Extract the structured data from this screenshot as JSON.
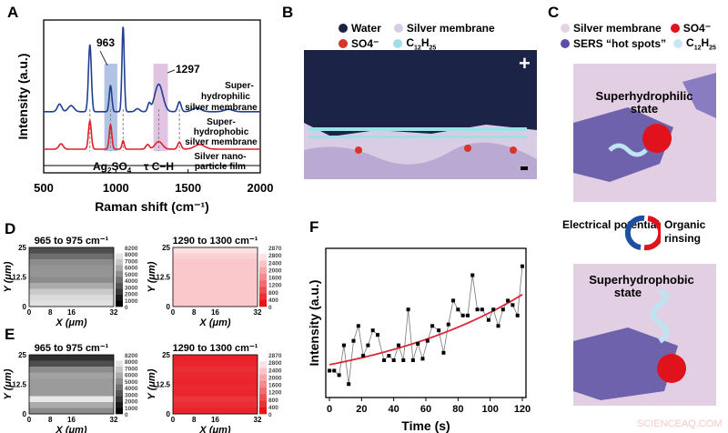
{
  "panels": {
    "a": "A",
    "b": "B",
    "c": "C",
    "d": "D",
    "e": "E",
    "f": "F"
  },
  "panel_b": {
    "legend": [
      {
        "label": "Water",
        "color": "#1b2347"
      },
      {
        "label": "Silver membrane",
        "color": "#d9cde6"
      },
      {
        "label": "SO4⁻",
        "color": "#d8342a"
      },
      {
        "label": "C12H25",
        "color": "#9fe0e6"
      }
    ],
    "plus": "+"
  },
  "panel_c": {
    "legend": [
      {
        "label": "Silver  membrane",
        "color": "#e3d3e3"
      },
      {
        "label": "SO4⁻",
        "color": "#e0121c"
      },
      {
        "label": "SERS “hot spots”",
        "color": "#5a4fa8"
      },
      {
        "label": "C12H25",
        "color": "#c9e6f2"
      }
    ],
    "top_state": "Superhydrophilic state",
    "bottom_state": "Superhydrophobic state",
    "left_label": "Electrical potential",
    "right_label": "Organic rinsing"
  },
  "watermark": "SCIENCEAQ.COM",
  "chart_data": [
    {
      "type": "line",
      "panel": "A",
      "xlabel": "Raman shift (cm⁻¹)",
      "ylabel": "Intensity (a.u.)",
      "xlim": [
        500,
        2000
      ],
      "xticks": [
        500,
        1000,
        1500,
        2000
      ],
      "annotations": {
        "peak1": "963",
        "peak2": "1297",
        "band1": "Ag2SO4",
        "band2": "τ C−H"
      },
      "bands": [
        {
          "range": [
            920,
            1010
          ],
          "color": "#9fb4dc"
        },
        {
          "range": [
            1260,
            1360
          ],
          "color": "#d9b5d9"
        }
      ],
      "dashed_markers": [
        820,
        963,
        1050,
        1297,
        1440
      ],
      "series": [
        {
          "name": "Super-hydrophilic silver membrane",
          "color": "#1f3f93",
          "baseline": 4.0,
          "peaks": [
            [
              610,
              0.5,
              15
            ],
            [
              690,
              0.4,
              20
            ],
            [
              820,
              4.4,
              10
            ],
            [
              963,
              1.7,
              9
            ],
            [
              1050,
              5.6,
              8
            ],
            [
              1150,
              0.2,
              15
            ],
            [
              1230,
              0.5,
              10
            ],
            [
              1297,
              1.8,
              28
            ],
            [
              1440,
              0.65,
              12
            ],
            [
              1560,
              0.25,
              30
            ],
            [
              1780,
              0.15,
              30
            ]
          ]
        },
        {
          "name": "Super-hydrophobic silver membrane",
          "color": "#e0202a",
          "baseline": 1.55,
          "peaks": [
            [
              620,
              0.35,
              15
            ],
            [
              820,
              1.85,
              10
            ],
            [
              963,
              1.6,
              9
            ],
            [
              1050,
              0.55,
              8
            ],
            [
              1220,
              0.3,
              12
            ],
            [
              1297,
              0.5,
              25
            ],
            [
              1440,
              0.45,
              12
            ],
            [
              1580,
              0.3,
              35
            ]
          ]
        }
      ],
      "extra_label": "Silver nano-particle film"
    },
    {
      "type": "heatmap",
      "panel": "D",
      "title": "965 to 975 cm⁻¹",
      "xlabel": "X (μm)",
      "ylabel": "Y (μm)",
      "xticks": [
        "0",
        "8",
        "16",
        "32"
      ],
      "yticks": [
        "0",
        "12.5",
        "25"
      ],
      "colorbar": [
        "8200",
        "8000",
        "7000",
        "6000",
        "5000",
        "4000",
        "3000",
        "2000",
        "1000",
        "0"
      ],
      "scale": "gray",
      "max": 8200,
      "rows": [
        2500,
        3500,
        4500,
        4800,
        4800,
        4500,
        5500,
        6500,
        7000,
        7200
      ]
    },
    {
      "type": "heatmap",
      "panel": "D",
      "title": "1290 to 1300 cm⁻¹",
      "xlabel": "X (μm)",
      "ylabel": "Y (μm)",
      "xticks": [
        "0",
        "8",
        "16",
        "32"
      ],
      "yticks": [
        "0",
        "12.5",
        "25"
      ],
      "colorbar": [
        "2870",
        "2800",
        "2400",
        "2000",
        "1600",
        "1200",
        "800",
        "400",
        "0"
      ],
      "scale": "red",
      "max": 2870,
      "rows": [
        2500,
        2300,
        2200,
        2200,
        2200,
        2200,
        2200,
        2200,
        2200,
        2200
      ]
    },
    {
      "type": "heatmap",
      "panel": "E",
      "title": "965 to 975 cm⁻¹",
      "xlabel": "X (μm)",
      "ylabel": "Y (μm)",
      "xticks": [
        "0",
        "8",
        "16",
        "32"
      ],
      "yticks": [
        "0",
        "12.5",
        "25"
      ],
      "colorbar": [
        "8200",
        "8000",
        "7000",
        "6000",
        "5000",
        "4000",
        "3000",
        "2000",
        "1000",
        "0"
      ],
      "scale": "gray",
      "max": 8200,
      "rows": [
        1500,
        2500,
        4500,
        5200,
        5000,
        5000,
        5000,
        7500,
        5500,
        4500
      ]
    },
    {
      "type": "heatmap",
      "panel": "E",
      "title": "1290 to 1300 cm⁻¹",
      "xlabel": "X (μm)",
      "ylabel": "Y (μm)",
      "xticks": [
        "0",
        "8",
        "16",
        "32"
      ],
      "yticks": [
        "0",
        "12.5",
        "25"
      ],
      "colorbar": [
        "2870",
        "2800",
        "2400",
        "2000",
        "1600",
        "1200",
        "800",
        "400",
        "0"
      ],
      "scale": "red",
      "max": 2870,
      "rows": [
        150,
        200,
        300,
        250,
        200,
        250,
        200,
        400,
        300,
        200
      ]
    },
    {
      "type": "scatter",
      "panel": "F",
      "xlabel": "Time (s)",
      "ylabel": "Intensity (a.u.)",
      "xlim": [
        0,
        120
      ],
      "ylim": [
        0,
        1
      ],
      "xticks": [
        0,
        20,
        40,
        60,
        80,
        100,
        120
      ],
      "x": [
        0,
        3,
        6,
        9,
        12,
        15,
        18,
        21,
        24,
        27,
        30,
        34,
        37,
        40,
        43,
        46,
        49,
        52,
        55,
        58,
        61,
        64,
        68,
        71,
        74,
        77,
        80,
        83,
        86,
        89,
        92,
        95,
        99,
        102,
        105,
        108,
        111,
        114,
        117,
        120
      ],
      "y": [
        0.18,
        0.18,
        0.15,
        0.35,
        0.09,
        0.38,
        0.48,
        0.28,
        0.35,
        0.45,
        0.42,
        0.25,
        0.28,
        0.25,
        0.35,
        0.25,
        0.59,
        0.25,
        0.36,
        0.26,
        0.38,
        0.48,
        0.45,
        0.3,
        0.49,
        0.65,
        0.59,
        0.55,
        0.55,
        0.82,
        0.59,
        0.59,
        0.52,
        0.59,
        0.48,
        0.59,
        0.65,
        0.62,
        0.55,
        0.88
      ],
      "fit": {
        "type": "exponential",
        "a": 0.22,
        "b": 0.00953,
        "color": "#d8283a"
      }
    }
  ]
}
